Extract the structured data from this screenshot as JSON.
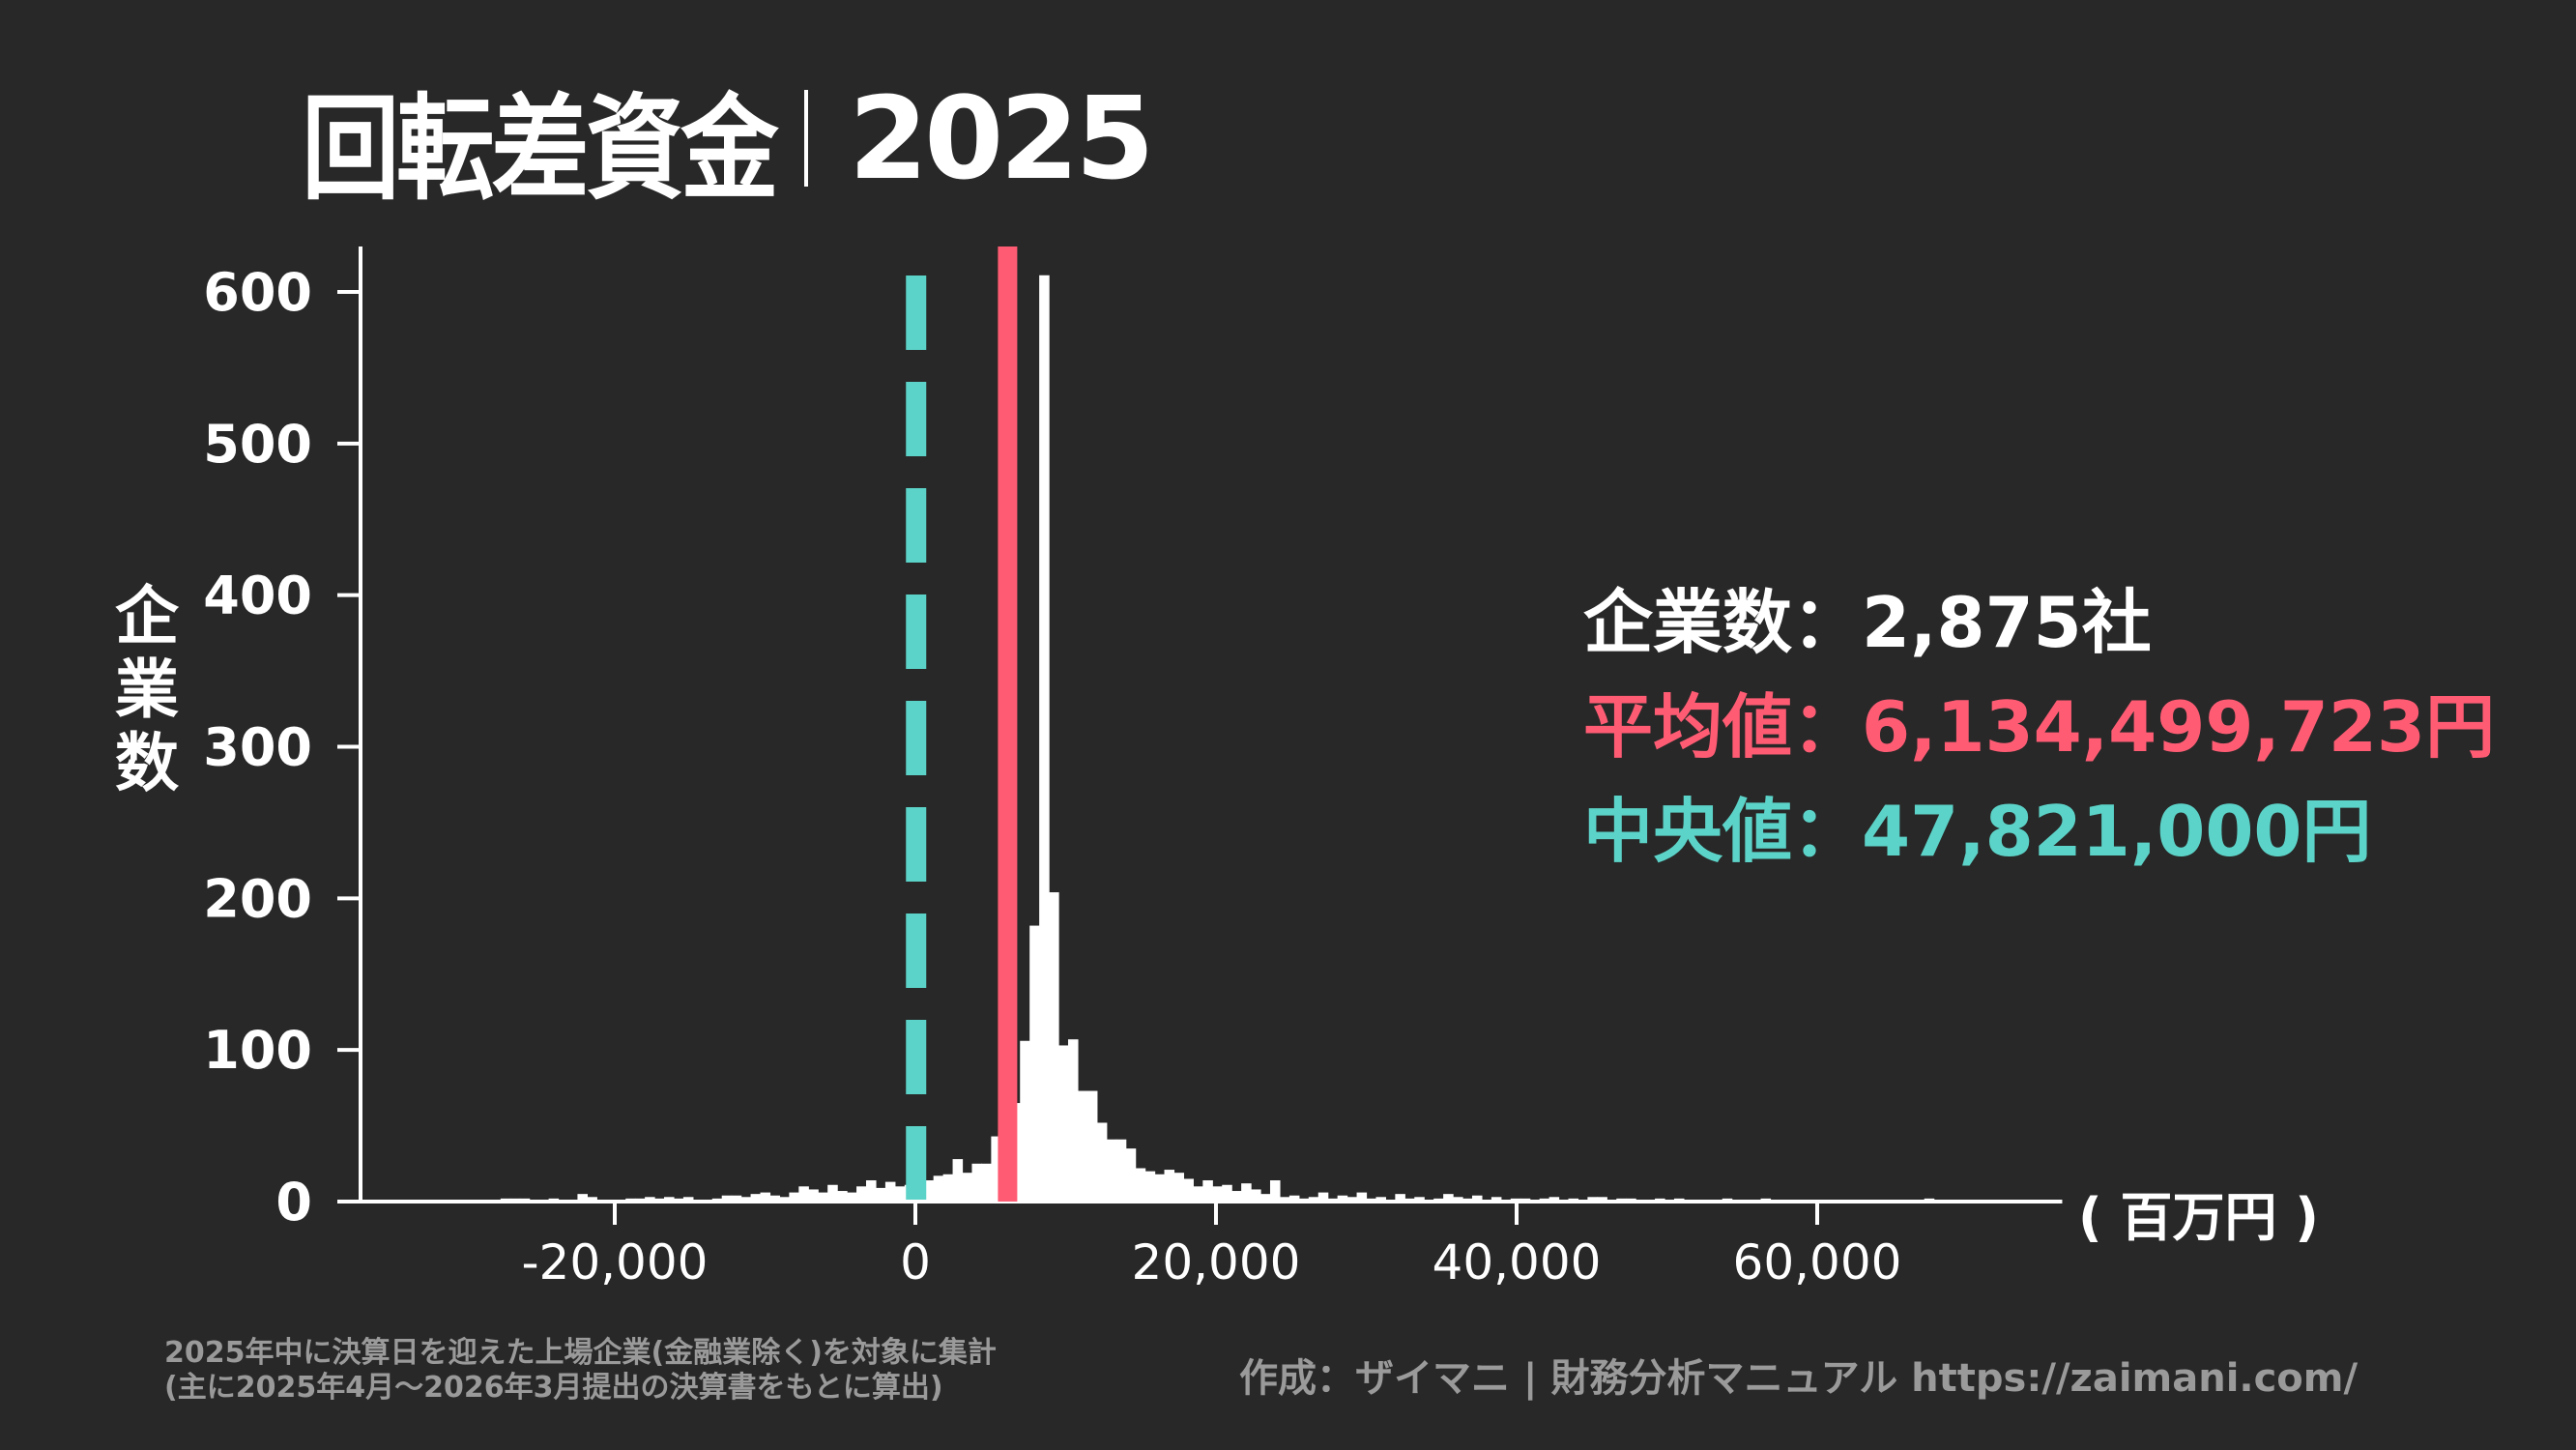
{
  "title": {
    "main": "回転差資金",
    "year": "2025"
  },
  "y_axis_label": [
    "企",
    "業",
    "数"
  ],
  "unit_label": "( 百万円 )",
  "stats": {
    "count_label": "企業数",
    "count_value": "2,875社",
    "mean_label": "平均値",
    "mean_value": "6,134,499,723円",
    "median_label": "中央値",
    "median_value": "47,821,000円",
    "separator": "："
  },
  "footnote": {
    "line1": "2025年中に決算日を迎えた上場企業(金融業除く)を対象に集計",
    "line2": "(主に2025年4月～2026年3月提出の決算書をもとに算出)"
  },
  "credit": "作成：ザイマニ | 財務分析マニュアル https://zaimani.com/",
  "colors": {
    "background": "#282828",
    "bars": "#ffffff",
    "mean": "#ff5c74",
    "median": "#5cd3c8",
    "note": "#9a9a9a"
  },
  "chart_data": {
    "type": "bar",
    "title": "回転差資金｜2025",
    "xlabel": "( 百万円 )",
    "ylabel": "企業数",
    "xlim": [
      -36900,
      76300
    ],
    "ylim": [
      0,
      630
    ],
    "xticks": [
      -20000,
      0,
      20000,
      40000,
      60000
    ],
    "xtick_labels": [
      "-20,000",
      "0",
      "20,000",
      "40,000",
      "60,000"
    ],
    "yticks": [
      0,
      100,
      200,
      300,
      400,
      500,
      600
    ],
    "ytick_labels": [
      "0",
      "100",
      "200",
      "300",
      "400",
      "500",
      "600"
    ],
    "grid": false,
    "bin_start": -31440,
    "bin_width": 640,
    "counts": [
      1,
      1,
      1,
      1,
      1,
      1,
      2,
      2,
      2,
      1,
      1,
      2,
      1,
      1,
      5,
      3,
      1,
      1,
      1,
      2,
      2,
      3,
      2,
      3,
      2,
      3,
      1,
      1,
      2,
      4,
      4,
      3,
      5,
      6,
      4,
      3,
      6,
      10,
      8,
      6,
      11,
      7,
      6,
      10,
      14,
      9,
      13,
      10,
      11,
      13,
      14,
      17,
      18,
      28,
      19,
      25,
      25,
      43,
      46,
      65,
      106,
      182,
      611,
      204,
      103,
      107,
      73,
      73,
      52,
      41,
      41,
      35,
      22,
      20,
      18,
      21,
      19,
      15,
      10,
      14,
      10,
      11,
      7,
      12,
      8,
      5,
      14,
      3,
      4,
      2,
      3,
      6,
      2,
      4,
      3,
      6,
      2,
      3,
      1,
      5,
      2,
      3,
      1,
      2,
      5,
      3,
      2,
      4,
      1,
      3,
      1,
      2,
      2,
      1,
      2,
      3,
      1,
      2,
      1,
      3,
      3,
      1,
      2,
      2,
      1,
      1,
      2,
      1,
      2,
      1,
      1,
      1,
      1,
      2,
      1,
      1,
      1,
      2,
      1,
      1,
      1,
      1,
      1,
      1,
      1,
      1,
      1,
      0,
      1,
      1,
      1,
      1,
      1,
      1,
      2,
      1,
      1,
      1,
      1,
      1,
      1,
      1,
      1,
      1
    ],
    "series": [
      {
        "name": "平均値",
        "value_million_yen": 6134.5,
        "style": "solid",
        "color": "#ff5c74"
      },
      {
        "name": "中央値",
        "value_million_yen": 47.8,
        "style": "dashed",
        "color": "#5cd3c8"
      }
    ],
    "annotations": [
      "企業数：2,875社",
      "平均値：6,134,499,723円",
      "中央値：47,821,000円"
    ]
  }
}
